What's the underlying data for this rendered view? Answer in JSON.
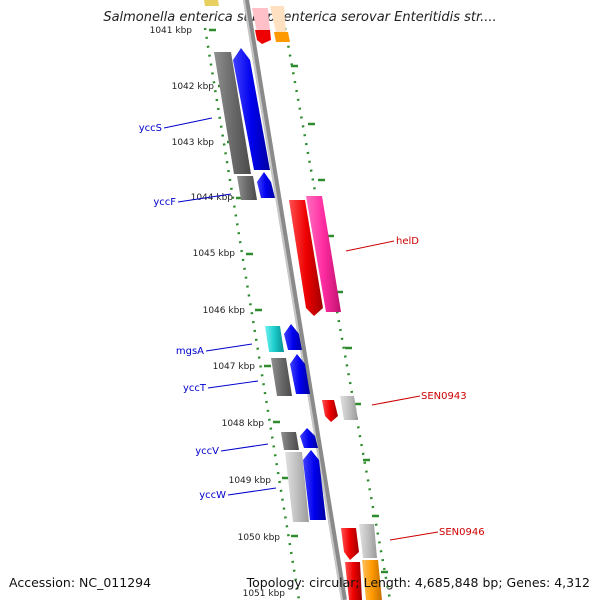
{
  "header": {
    "title": "Salmonella enterica subsp. enterica serovar Enteritidis str...."
  },
  "footer": {
    "accession": "Accession: NC_011294",
    "summary": "Topology: circular; Length: 4,685,848 bp; Genes: 4,312"
  },
  "colors": {
    "backbone": "#a0a0a0",
    "ruler_dots": "#2e8b2e",
    "label_left": "#0000cc",
    "label_right": "#cc0000",
    "gene_grey": "#707070",
    "gene_light_grey": "#c0c0c0",
    "gene_blue": "#0000ee",
    "gene_red": "#ee0000",
    "gene_pink": "#ff2ca0",
    "gene_cyan": "#1ccccc",
    "gene_orange": "#ff9900",
    "gene_yellow": "#e8d060",
    "gene_peach": "#ffe0c0",
    "gene_pink_light": "#ffc0c8"
  },
  "ruler": {
    "unit": "kbp",
    "ticks": [
      "1041 kbp",
      "1042 kbp",
      "1043 kbp",
      "1044 kbp",
      "1045 kbp",
      "1046 kbp",
      "1047 kbp",
      "1048 kbp",
      "1049 kbp",
      "1050 kbp",
      "1051 kbp"
    ]
  },
  "genes": [
    {
      "label": "yccS",
      "side": "left",
      "color_key": "gene_blue",
      "strand": "forward"
    },
    {
      "label": "yccF",
      "side": "left",
      "color_key": "gene_blue",
      "strand": "forward"
    },
    {
      "label": "helD",
      "side": "right",
      "color_key": "gene_pink",
      "strand": "reverse"
    },
    {
      "label": "mgsA",
      "side": "left",
      "color_key": "gene_blue",
      "strand": "forward"
    },
    {
      "label": "yccT",
      "side": "left",
      "color_key": "gene_blue",
      "strand": "forward"
    },
    {
      "label": "SEN0943",
      "side": "right",
      "color_key": "gene_red",
      "strand": "reverse"
    },
    {
      "label": "yccV",
      "side": "left",
      "color_key": "gene_blue",
      "strand": "forward"
    },
    {
      "label": "yccW",
      "side": "left",
      "color_key": "gene_blue",
      "strand": "forward"
    },
    {
      "label": "SEN0946",
      "side": "right",
      "color_key": "gene_red",
      "strand": "reverse"
    }
  ]
}
